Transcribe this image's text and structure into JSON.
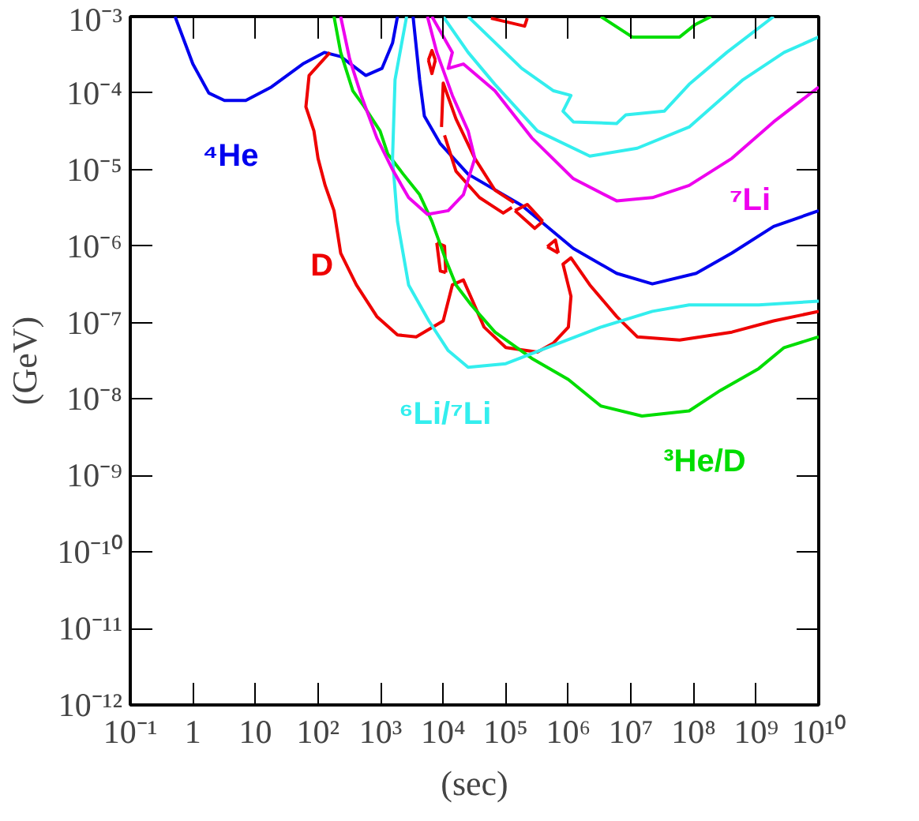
{
  "chart_data": {
    "type": "line",
    "xlabel": "(sec)",
    "ylabel": "(GeV)",
    "log": "xy",
    "marker": "none",
    "line_style": "solid",
    "xlim": [
      0.1,
      10000000000.0
    ],
    "ylim": [
      1e-12,
      0.001
    ],
    "xticks": [
      {
        "value": 0.1,
        "label": "10⁻¹"
      },
      1,
      10,
      {
        "value": 100,
        "label": "10²"
      },
      {
        "value": 1000,
        "label": "10³"
      },
      {
        "value": 10000,
        "label": "10⁴"
      },
      {
        "value": 100000,
        "label": "10⁵"
      },
      {
        "value": 1000000,
        "label": "10⁶"
      },
      {
        "value": 10000000,
        "label": "10⁷"
      },
      {
        "value": 100000000,
        "label": "10⁸"
      },
      {
        "value": 1000000000,
        "label": "10⁹"
      },
      {
        "value": 10000000000,
        "label": "10¹⁰"
      }
    ],
    "yticks": [
      {
        "value": 1e-12,
        "label": "10⁻¹²"
      },
      {
        "value": 1e-11,
        "label": "10⁻¹¹"
      },
      {
        "value": 1e-10,
        "label": "10⁻¹⁰"
      },
      {
        "value": 1e-09,
        "label": "10⁻⁹"
      },
      {
        "value": 1e-08,
        "label": "10⁻⁸"
      },
      {
        "value": 1e-07,
        "label": "10⁻⁷"
      },
      {
        "value": 1e-06,
        "label": "10⁻⁶"
      },
      {
        "value": 1e-05,
        "label": "10⁻⁵"
      },
      {
        "value": 0.0001,
        "label": "10⁻⁴"
      },
      {
        "value": 0.001,
        "label": "10⁻³"
      }
    ],
    "series": [
      {
        "name": "⁴He",
        "color": "#0000ee",
        "x": [
          0.52,
          1,
          1.8,
          3.2,
          7,
          18,
          57,
          126,
          230,
          580,
          1050,
          1550,
          1860
        ],
        "values": [
          0.001,
          0.00024,
          0.0001,
          8e-05,
          8e-05,
          0.00012,
          0.00024,
          0.00034,
          0.0003,
          0.00017,
          0.00021,
          0.00045,
          0.001
        ]
      },
      {
        "color": "#0000ee",
        "x": [
          3300,
          4200,
          5000,
          8900,
          25000.0,
          180000.0,
          1200000.0,
          5900000.0,
          22000000.0,
          110000000.0,
          410000000.0,
          1900000000.0,
          10000000000.0
        ],
        "values": [
          0.001,
          0.00015,
          5e-05,
          2.2e-05,
          8.7e-06,
          3.4e-06,
          9.3e-07,
          4.4e-07,
          3.2e-07,
          4.4e-07,
          8.1e-07,
          1.8e-06,
          2.9e-06
        ]
      },
      {
        "name": "D",
        "color": "#ee0000",
        "x": [
          155,
          72,
          64,
          86,
          100,
          130,
          180,
          230,
          410,
          870,
          1860,
          3700,
          10000.0,
          14000.0,
          21000.0,
          45000.0,
          100000.0,
          320000.0,
          580000.0,
          1000000.0,
          1100000.0,
          820000.0,
          1100000.0,
          2200000.0,
          5900000.0,
          12600000.0,
          60000000.0,
          410000000.0,
          1900000000.0,
          10000000000.0
        ],
        "values": [
          0.00034,
          0.00017,
          6.6e-05,
          3.2e-05,
          1.4e-05,
          6.2e-06,
          2.9e-06,
          8.1e-07,
          3.1e-07,
          1.2e-07,
          6.9e-08,
          6.5e-08,
          1.05e-07,
          3.1e-07,
          3.6e-07,
          8.7e-08,
          4.7e-08,
          4.1e-08,
          5.4e-08,
          8.7e-08,
          2.2e-07,
          5.8e-07,
          7e-07,
          3.1e-07,
          1.2e-07,
          6.5e-08,
          5.9e-08,
          7.5e-08,
          1.05e-07,
          1.4e-07
        ]
      },
      {
        "color": "#ee0000",
        "x": [
          9400,
          10000.0,
          16000.0,
          32000.0,
          67000.0,
          135000.0
        ],
        "values": [
          3.6e-05,
          0.000135,
          4.6e-05,
          1.4e-05,
          5.4e-06,
          3.7e-06
        ]
      },
      {
        "color": "#ee0000",
        "x": [
          10500.0,
          16000.0,
          38000.0,
          91000.0,
          125000.0
        ],
        "values": [
          2.8e-05,
          9.5e-06,
          4.3e-06,
          2.7e-06,
          3.2e-06
        ]
      },
      {
        "color": "#ee0000",
        "x": [
          5800,
          6600,
          7500
        ],
        "values": [
          0.00027,
          0.00036,
          0.00027
        ]
      },
      {
        "color": "#ee0000",
        "x": [
          5800,
          6600,
          7500
        ],
        "values": [
          0.00027,
          0.00018,
          0.00027
        ]
      },
      {
        "color": "#ee0000",
        "x": [
          140000.0,
          220000.0,
          390000.0
        ],
        "values": [
          2.9e-06,
          3.5e-06,
          2.1e-06
        ]
      },
      {
        "color": "#ee0000",
        "x": [
          140000.0,
          290000.0,
          390000.0
        ],
        "values": [
          2.9e-06,
          1.7e-06,
          2.1e-06
        ]
      },
      {
        "color": "#ee0000",
        "x": [
          460000.0,
          620000.0,
          690000.0
        ],
        "values": [
          9.8e-07,
          1.2e-06,
          8.1e-07
        ]
      },
      {
        "color": "#ee0000",
        "x": [
          460000.0,
          690000.0
        ],
        "values": [
          9.8e-07,
          8.1e-07
        ]
      },
      {
        "color": "#ee0000",
        "x": [
          58000.0,
          200000.0,
          220000.0
        ],
        "values": [
          0.00095,
          0.00075,
          0.00095
        ]
      },
      {
        "color": "#ee0000",
        "x": [
          7900,
          10500.0,
          11000.0
        ],
        "values": [
          1.1e-06,
          1e-06,
          4.5e-07
        ]
      },
      {
        "color": "#ee0000",
        "x": [
          7900,
          9000,
          11000.0
        ],
        "values": [
          1.1e-06,
          4.7e-07,
          4.5e-07
        ]
      },
      {
        "name": "³He/D",
        "color": "#00dd00",
        "x": [
          180,
          230,
          360,
          550,
          980,
          1300,
          2300,
          4200,
          6600,
          10700.0,
          16000.0,
          28000.0,
          67000.0,
          260000.0,
          1000000.0,
          3300000.0,
          15000000.0,
          85000000.0,
          270000000.0,
          1100000000.0,
          2800000000.0,
          10000000000.0
        ],
        "values": [
          0.001,
          0.00034,
          0.000107,
          6.6e-05,
          3.2e-05,
          1.6e-05,
          8.7e-06,
          4.7e-06,
          2.1e-06,
          7e-07,
          3.1e-07,
          1.7e-07,
          7.5e-08,
          3.4e-08,
          1.8e-08,
          8.1e-09,
          6e-09,
          7e-09,
          1.3e-08,
          2.5e-08,
          4.7e-08,
          6.5e-08
        ]
      },
      {
        "color": "#00dd00",
        "x": [
          3300000.0,
          10500000.0,
          60000000.0,
          107000000.0,
          190000000.0
        ],
        "values": [
          0.001,
          0.00054,
          0.00054,
          0.00079,
          0.001
        ]
      },
      {
        "name": "⁶Li/⁷Li",
        "color": "#33eeee",
        "x": [
          2600,
          1700,
          1550,
          1860,
          2800,
          5900,
          12000.0,
          25000.0,
          100000.0,
          460000.0,
          3300000.0,
          22000000.0,
          85000000.0,
          1100000000.0,
          10000000000.0
        ],
        "values": [
          0.001,
          0.00015,
          1.4e-05,
          2.1e-06,
          3.1e-07,
          1.05e-07,
          4.3e-08,
          2.6e-08,
          2.9e-08,
          4.7e-08,
          8.7e-08,
          1.4e-07,
          1.7e-07,
          1.7e-07,
          1.9e-07
        ]
      },
      {
        "color": "#33eeee",
        "x": [
          10000.0,
          25000.0,
          67000.0,
          320000.0,
          2200000.0,
          12600000.0,
          85000000.0,
          620000000.0,
          2800000000.0,
          10000000000.0
        ],
        "values": [
          0.001,
          0.00034,
          0.00013,
          3.2e-05,
          1.5e-05,
          1.9e-05,
          3.6e-05,
          0.00015,
          0.00034,
          0.00054
        ]
      },
      {
        "color": "#33eeee",
        "x": [
          25000.0,
          180000.0,
          580000.0,
          1100000.0,
          820000.0,
          1200000.0,
          5900000.0,
          8300000.0,
          34000000.0,
          85000000.0,
          340000000.0,
          1900000000.0
        ],
        "values": [
          0.001,
          0.00021,
          0.000107,
          9.3e-05,
          5.8e-05,
          4.2e-05,
          4e-05,
          5.2e-05,
          5.8e-05,
          0.00013,
          0.00034,
          0.001
        ]
      },
      {
        "color": "#ee00ee",
        "x": [
          230,
          320,
          490,
          870,
          1550,
          2800,
          5600,
          12000.0,
          21000.0,
          32000.0,
          25000.0,
          14000.0,
          7900,
          5600
        ],
        "values": [
          0.001,
          0.00028,
          9.3e-05,
          2.6e-05,
          1e-05,
          4.3e-06,
          2.6e-06,
          2.9e-06,
          4.7e-06,
          1.4e-05,
          3.2e-05,
          9.3e-05,
          0.00034,
          0.001
        ]
      },
      {
        "name": "⁷Li",
        "color": "#ee00ee",
        "x": [
          6600,
          14000.0,
          12000.0,
          21000.0,
          67000.0,
          260000.0,
          1200000.0,
          5900000.0,
          22000000.0,
          85000000.0,
          410000000.0,
          1900000000.0,
          10000000000.0
        ],
        "values": [
          0.001,
          0.00034,
          0.00021,
          0.00024,
          0.000107,
          2.6e-05,
          7.6e-06,
          3.9e-06,
          4.3e-06,
          6.2e-06,
          1.4e-05,
          4.2e-05,
          0.00012
        ]
      }
    ]
  }
}
